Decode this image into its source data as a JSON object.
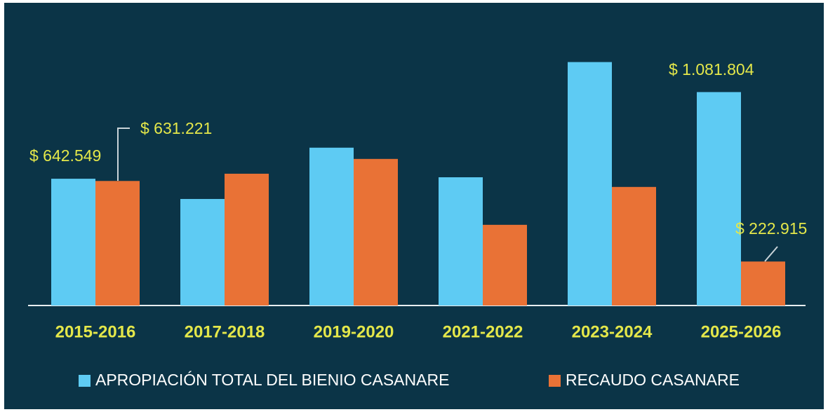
{
  "chart_data": {
    "type": "bar",
    "categories": [
      "2015-2016",
      "2017-2018",
      "2019-2020",
      "2021-2022",
      "2023-2024",
      "2025-2026"
    ],
    "series": [
      {
        "name": "APROPIACIÓN TOTAL DEL BIENIO CASANARE",
        "color": "#5ecbf3",
        "values": [
          642549,
          540000,
          800000,
          650000,
          1234000,
          1081804
        ],
        "value_labels": [
          "$ 642.549",
          null,
          null,
          null,
          null,
          "$ 1.081.804"
        ]
      },
      {
        "name": "RECAUDO CASANARE",
        "color": "#e97236",
        "values": [
          631221,
          668000,
          743000,
          409000,
          601000,
          222915
        ],
        "value_labels": [
          "$ 631.221",
          null,
          null,
          null,
          null,
          "$ 222.915"
        ]
      }
    ],
    "ylim": [
      0,
      1300000
    ]
  }
}
